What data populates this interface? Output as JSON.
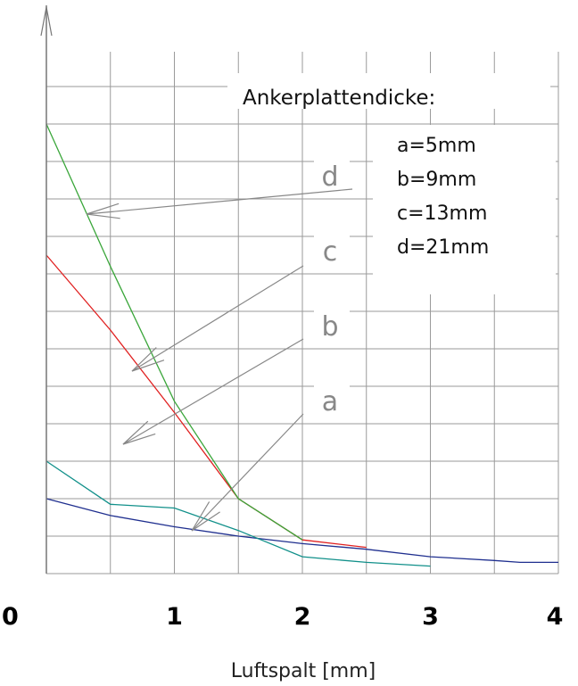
{
  "chart_data": {
    "type": "line",
    "xlabel": "Luftspalt [mm]",
    "ylabel": "",
    "xlim": [
      0,
      4
    ],
    "x_ticks": [
      "0",
      "1",
      "2",
      "3",
      "4"
    ],
    "grid": true,
    "legend": {
      "title": "Ankerplattendicke:",
      "items": [
        "a=5mm",
        "b=9mm",
        "c=13mm",
        "d=21mm"
      ],
      "placement": "top-right"
    },
    "series": [
      {
        "name": "a",
        "color": "#1f2f8f",
        "x": [
          0,
          0.5,
          1.0,
          1.5,
          2.0,
          2.5,
          3.0,
          3.5,
          3.7,
          4.0
        ],
        "y": [
          2.0,
          1.55,
          1.25,
          1.0,
          0.8,
          0.65,
          0.45,
          0.35,
          0.3,
          0.3
        ]
      },
      {
        "name": "b",
        "color": "#11908a",
        "x": [
          0,
          0.5,
          1.0,
          1.5,
          2.0,
          2.5,
          3.0
        ],
        "y": [
          3.0,
          1.85,
          1.75,
          1.15,
          0.45,
          0.3,
          0.2
        ]
      },
      {
        "name": "c",
        "color": "#e02020",
        "x": [
          0,
          0.5,
          1.0,
          1.5,
          2.0,
          2.5
        ],
        "y": [
          8.5,
          6.5,
          4.3,
          2.0,
          0.9,
          0.7
        ]
      },
      {
        "name": "d",
        "color": "#3aa63a",
        "x": [
          0,
          0.5,
          1.0,
          1.5,
          2.0
        ],
        "y": [
          12.0,
          8.2,
          4.6,
          2.0,
          0.9
        ]
      }
    ],
    "callouts": [
      "d",
      "c",
      "b",
      "a"
    ]
  }
}
